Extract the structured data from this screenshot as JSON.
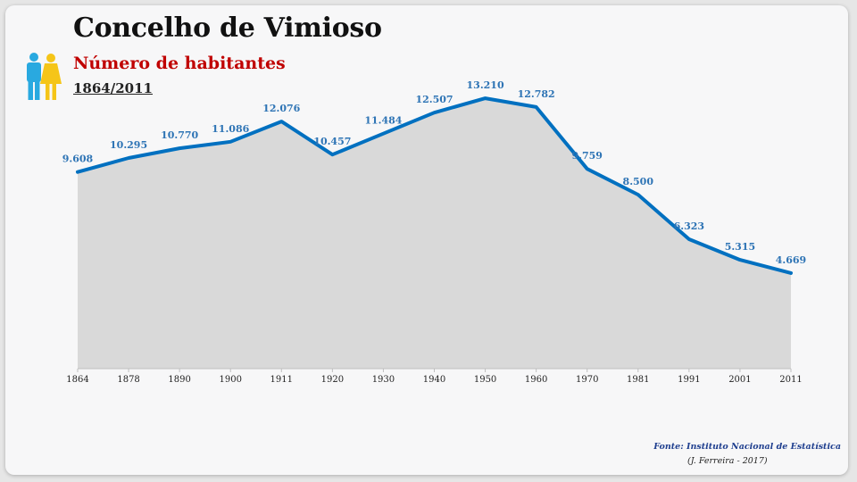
{
  "header": {
    "title": "Concelho de Vimioso",
    "subtitle": "Número de habitantes",
    "period": "1864/2011"
  },
  "footer": {
    "source": "Fonte: Instituto Nacional de Estatística",
    "credit": "(J. Ferreira - 2017)"
  },
  "icons": {
    "people": "people-icon"
  },
  "colors": {
    "line": "#0070c0",
    "area": "#d9d9d9",
    "label": "#2e74b5",
    "man": "#29a9e0",
    "woman": "#f5c518"
  },
  "chart_data": {
    "type": "area",
    "x": [
      "1864",
      "1878",
      "1890",
      "1900",
      "1911",
      "1920",
      "1930",
      "1940",
      "1950",
      "1960",
      "1970",
      "1981",
      "1991",
      "2001",
      "2011"
    ],
    "values": [
      9608,
      10295,
      10770,
      11086,
      12076,
      10457,
      11484,
      12507,
      13210,
      12782,
      9759,
      8500,
      6323,
      5315,
      4669
    ],
    "labels": [
      "9.608",
      "10.295",
      "10.770",
      "11.086",
      "12.076",
      "10.457",
      "11.484",
      "12.507",
      "13.210",
      "12.782",
      "9.759",
      "8.500",
      "6.323",
      "5.315",
      "4.669"
    ],
    "ylim": [
      0,
      14000
    ],
    "grid": false,
    "legend": "none"
  }
}
